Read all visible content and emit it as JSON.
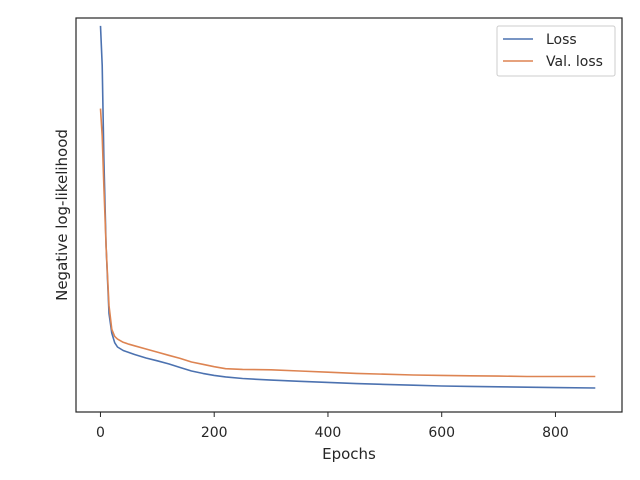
{
  "chart_data": {
    "type": "line",
    "title": "",
    "xlabel": "Epochs",
    "ylabel": "Negative log-likelihood",
    "xlim": [
      -43,
      917
    ],
    "ylim": [
      0,
      1
    ],
    "xticks": [
      0,
      200,
      400,
      600,
      800
    ],
    "yticks": [],
    "grid": false,
    "legend_position": "top-right",
    "series": [
      {
        "name": "Loss",
        "color": "#4c72b0",
        "points": [
          [
            0,
            0.98
          ],
          [
            3,
            0.88
          ],
          [
            6,
            0.64
          ],
          [
            10,
            0.42
          ],
          [
            15,
            0.25
          ],
          [
            20,
            0.2
          ],
          [
            25,
            0.176
          ],
          [
            30,
            0.165
          ],
          [
            40,
            0.156
          ],
          [
            50,
            0.151
          ],
          [
            60,
            0.146
          ],
          [
            80,
            0.137
          ],
          [
            100,
            0.13
          ],
          [
            120,
            0.122
          ],
          [
            140,
            0.113
          ],
          [
            160,
            0.104
          ],
          [
            180,
            0.098
          ],
          [
            200,
            0.093
          ],
          [
            220,
            0.089
          ],
          [
            250,
            0.085
          ],
          [
            300,
            0.081
          ],
          [
            350,
            0.078
          ],
          [
            400,
            0.075
          ],
          [
            450,
            0.072
          ],
          [
            500,
            0.07
          ],
          [
            550,
            0.068
          ],
          [
            600,
            0.066
          ],
          [
            650,
            0.065
          ],
          [
            700,
            0.064
          ],
          [
            750,
            0.063
          ],
          [
            800,
            0.062
          ],
          [
            870,
            0.061
          ]
        ]
      },
      {
        "name": "Val. loss",
        "color": "#dd8452",
        "points": [
          [
            0,
            0.77
          ],
          [
            3,
            0.7
          ],
          [
            6,
            0.57
          ],
          [
            10,
            0.42
          ],
          [
            15,
            0.27
          ],
          [
            20,
            0.21
          ],
          [
            25,
            0.192
          ],
          [
            30,
            0.185
          ],
          [
            40,
            0.177
          ],
          [
            50,
            0.172
          ],
          [
            60,
            0.168
          ],
          [
            80,
            0.16
          ],
          [
            100,
            0.152
          ],
          [
            120,
            0.144
          ],
          [
            140,
            0.136
          ],
          [
            160,
            0.127
          ],
          [
            180,
            0.121
          ],
          [
            200,
            0.115
          ],
          [
            220,
            0.11
          ],
          [
            250,
            0.108
          ],
          [
            300,
            0.107
          ],
          [
            350,
            0.104
          ],
          [
            400,
            0.101
          ],
          [
            450,
            0.098
          ],
          [
            500,
            0.096
          ],
          [
            550,
            0.094
          ],
          [
            600,
            0.093
          ],
          [
            650,
            0.092
          ],
          [
            700,
            0.091
          ],
          [
            750,
            0.09
          ],
          [
            800,
            0.09
          ],
          [
            870,
            0.09
          ]
        ]
      }
    ]
  }
}
